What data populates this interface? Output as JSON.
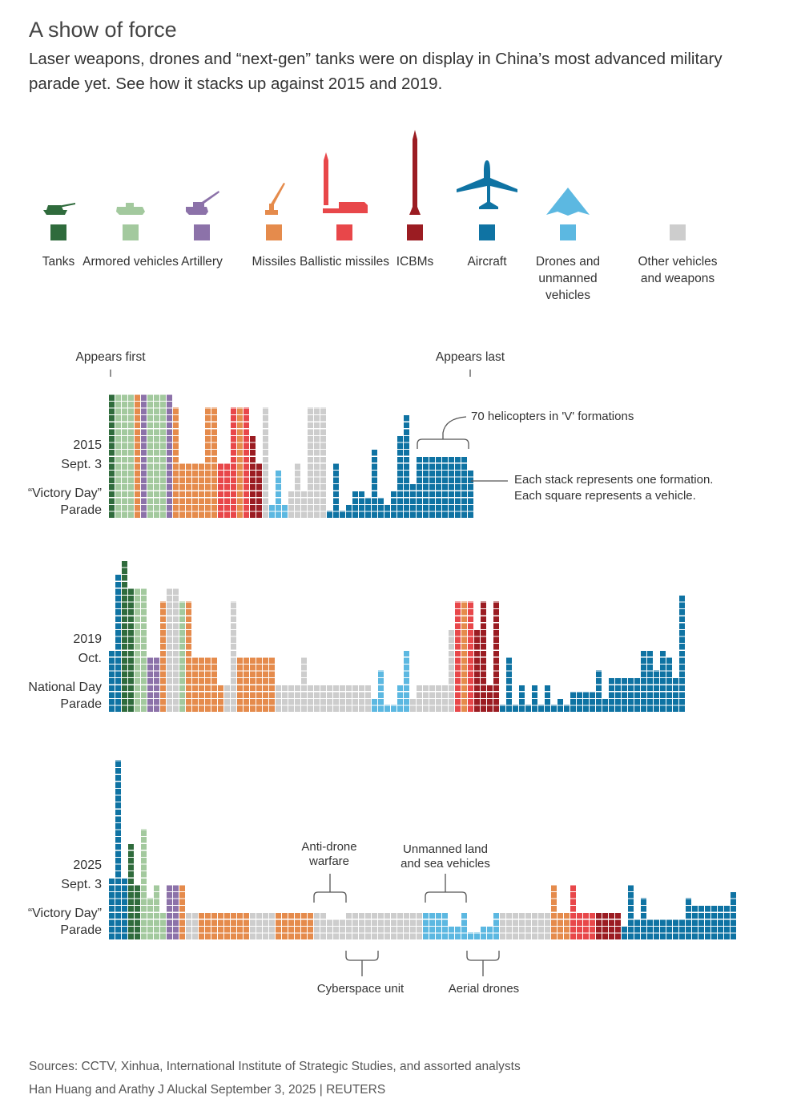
{
  "title": "A show of force",
  "subtitle": "Laser weapons, drones and “next-gen” tanks were on display in China’s most advanced military parade yet. See how it stacks up against 2015 and 2019.",
  "colors": {
    "dg": "#2f6b3c",
    "lg": "#a3c99e",
    "pu": "#8c72a9",
    "or": "#e58b4c",
    "re": "#e8474a",
    "dr": "#9b1c22",
    "bl": "#0f73a3",
    "lb": "#5cb8e1",
    "gy": "#cdcdcd"
  },
  "legend": [
    {
      "key": "dg",
      "label": "Tanks",
      "icon": "tank-icon"
    },
    {
      "key": "lg",
      "label": "Armored vehicles",
      "icon": "armored-vehicle-icon"
    },
    {
      "key": "pu",
      "label": "Artillery",
      "icon": "artillery-icon"
    },
    {
      "key": "or",
      "label": "Missiles",
      "icon": "missile-launcher-icon"
    },
    {
      "key": "re",
      "label": "Ballistic missiles",
      "icon": "ballistic-missile-icon"
    },
    {
      "key": "dr",
      "label": "ICBMs",
      "icon": "icbm-icon"
    },
    {
      "key": "bl",
      "label": "Aircraft",
      "icon": "aircraft-icon"
    },
    {
      "key": "lb",
      "label": "Drones and unmanned vehicles",
      "icon": "drone-icon"
    },
    {
      "key": "gy",
      "label": "Other vehicles and weapons",
      "icon": ""
    }
  ],
  "annotations": {
    "appears_first": "Appears first",
    "appears_last": "Appears last",
    "helicopters": "70 helicopters in 'V' formations",
    "each_stack": "Each stack represents one formation.",
    "each_square": "Each square represents a vehicle.",
    "anti_drone": "Anti-drone warfare",
    "unmanned": "Unmanned land and sea vehicles",
    "cyberspace": "Cyberspace unit",
    "aerial": "Aerial drones"
  },
  "chart_data": {
    "type": "waffle-stacks",
    "unit": "one square = one vehicle; one stack = one formation; order = order of appearance",
    "parades": [
      {
        "year": "2015",
        "date": "Sept. 3",
        "name": "“Victory Day” Parade",
        "runs": [
          [
            "dg",
            18,
            1
          ],
          [
            "lg",
            18,
            3
          ],
          [
            "or",
            18,
            1
          ],
          [
            "pu",
            18,
            1
          ],
          [
            "lg",
            18,
            3
          ],
          [
            "pu",
            18,
            1
          ],
          [
            "or",
            16,
            1
          ],
          [
            "or",
            8,
            4
          ],
          [
            "or",
            16,
            2
          ],
          [
            "re",
            8,
            2
          ],
          [
            "re",
            16,
            1
          ],
          [
            "or",
            16,
            1
          ],
          [
            "re",
            16,
            1
          ],
          [
            "dr",
            12,
            1
          ],
          [
            "dr",
            8,
            1
          ],
          [
            "gy",
            16,
            1
          ],
          [
            "lb",
            2,
            1
          ],
          [
            "lb",
            7,
            1
          ],
          [
            "lb",
            2,
            1
          ],
          [
            "gy",
            4,
            1
          ],
          [
            "gy",
            8,
            1
          ],
          [
            "gy",
            4,
            1
          ],
          [
            "gy",
            16,
            3
          ],
          [
            "bl",
            1,
            1
          ],
          [
            "bl",
            8,
            1
          ],
          [
            "bl",
            1,
            1
          ],
          [
            "bl",
            2,
            1
          ],
          [
            "bl",
            4,
            2
          ],
          [
            "bl",
            3,
            1
          ],
          [
            "bl",
            10,
            1
          ],
          [
            "bl",
            3,
            1
          ],
          [
            "bl",
            2,
            1
          ],
          [
            "bl",
            4,
            1
          ],
          [
            "bl",
            12,
            1
          ],
          [
            "bl",
            15,
            1
          ],
          [
            "bl",
            5,
            1
          ],
          [
            "bl",
            9,
            8
          ],
          [
            "bl",
            7,
            1
          ]
        ]
      },
      {
        "year": "2019",
        "date": "Oct.",
        "name": "National Day Parade",
        "runs": [
          [
            "bl",
            9,
            1
          ],
          [
            "bl",
            20,
            1
          ],
          [
            "dg",
            22,
            1
          ],
          [
            "dg",
            18,
            1
          ],
          [
            "lg",
            18,
            2
          ],
          [
            "pu",
            8,
            2
          ],
          [
            "or",
            16,
            1
          ],
          [
            "gy",
            18,
            2
          ],
          [
            "lg",
            16,
            1
          ],
          [
            "or",
            16,
            1
          ],
          [
            "or",
            8,
            4
          ],
          [
            "or",
            4,
            1
          ],
          [
            "gy",
            4,
            1
          ],
          [
            "gy",
            16,
            1
          ],
          [
            "or",
            8,
            6
          ],
          [
            "gy",
            4,
            4
          ],
          [
            "gy",
            8,
            1
          ],
          [
            "gy",
            4,
            10
          ],
          [
            "lb",
            2,
            1
          ],
          [
            "lb",
            6,
            1
          ],
          [
            "lb",
            1,
            2
          ],
          [
            "lb",
            4,
            1
          ],
          [
            "lb",
            9,
            1
          ],
          [
            "gy",
            2,
            1
          ],
          [
            "gy",
            4,
            5
          ],
          [
            "gy",
            12,
            1
          ],
          [
            "re",
            16,
            1
          ],
          [
            "or",
            16,
            1
          ],
          [
            "re",
            16,
            1
          ],
          [
            "dr",
            12,
            1
          ],
          [
            "dr",
            16,
            1
          ],
          [
            "dr",
            4,
            1
          ],
          [
            "dr",
            16,
            1
          ],
          [
            "bl",
            1,
            1
          ],
          [
            "bl",
            8,
            1
          ],
          [
            "bl",
            1,
            1
          ],
          [
            "bl",
            4,
            1
          ],
          [
            "bl",
            1,
            1
          ],
          [
            "bl",
            4,
            1
          ],
          [
            "bl",
            1,
            1
          ],
          [
            "bl",
            4,
            1
          ],
          [
            "bl",
            1,
            1
          ],
          [
            "bl",
            2,
            1
          ],
          [
            "bl",
            1,
            1
          ],
          [
            "bl",
            3,
            4
          ],
          [
            "bl",
            6,
            1
          ],
          [
            "bl",
            2,
            1
          ],
          [
            "bl",
            5,
            5
          ],
          [
            "bl",
            9,
            2
          ],
          [
            "bl",
            6,
            1
          ],
          [
            "bl",
            9,
            1
          ],
          [
            "bl",
            8,
            1
          ],
          [
            "bl",
            5,
            1
          ],
          [
            "bl",
            17,
            1
          ]
        ]
      },
      {
        "year": "2025",
        "date": "Sept. 3",
        "name": "“Victory Day” Parade",
        "runs": [
          [
            "bl",
            9,
            1
          ],
          [
            "bl",
            26,
            1
          ],
          [
            "bl",
            9,
            1
          ],
          [
            "dg",
            14,
            1
          ],
          [
            "dg",
            8,
            1
          ],
          [
            "lg",
            16,
            1
          ],
          [
            "lg",
            6,
            1
          ],
          [
            "lg",
            8,
            1
          ],
          [
            "lg",
            4,
            1
          ],
          [
            "pu",
            8,
            2
          ],
          [
            "or",
            8,
            1
          ],
          [
            "gy",
            4,
            2
          ],
          [
            "or",
            4,
            8
          ],
          [
            "gy",
            4,
            4
          ],
          [
            "or",
            4,
            6
          ],
          [
            "gy",
            4,
            2
          ],
          [
            "gy",
            3,
            3
          ],
          [
            "gy",
            4,
            12
          ],
          [
            "lb",
            4,
            4
          ],
          [
            "lb",
            2,
            2
          ],
          [
            "lb",
            4,
            1
          ],
          [
            "lb",
            1,
            2
          ],
          [
            "lb",
            2,
            2
          ],
          [
            "lb",
            4,
            1
          ],
          [
            "gy",
            4,
            8
          ],
          [
            "or",
            8,
            1
          ],
          [
            "or",
            4,
            2
          ],
          [
            "re",
            8,
            1
          ],
          [
            "re",
            4,
            3
          ],
          [
            "dr",
            4,
            4
          ],
          [
            "bl",
            2,
            1
          ],
          [
            "bl",
            8,
            1
          ],
          [
            "bl",
            3,
            1
          ],
          [
            "bl",
            6,
            1
          ],
          [
            "bl",
            3,
            6
          ],
          [
            "bl",
            6,
            1
          ],
          [
            "bl",
            5,
            6
          ],
          [
            "bl",
            7,
            1
          ]
        ]
      }
    ]
  },
  "footer": {
    "sources": "Sources: CCTV, Xinhua, International Institute of Strategic Studies, and assorted analysts",
    "credit": "Han Huang and Arathy J Aluckal  September 3, 2025 | REUTERS"
  }
}
